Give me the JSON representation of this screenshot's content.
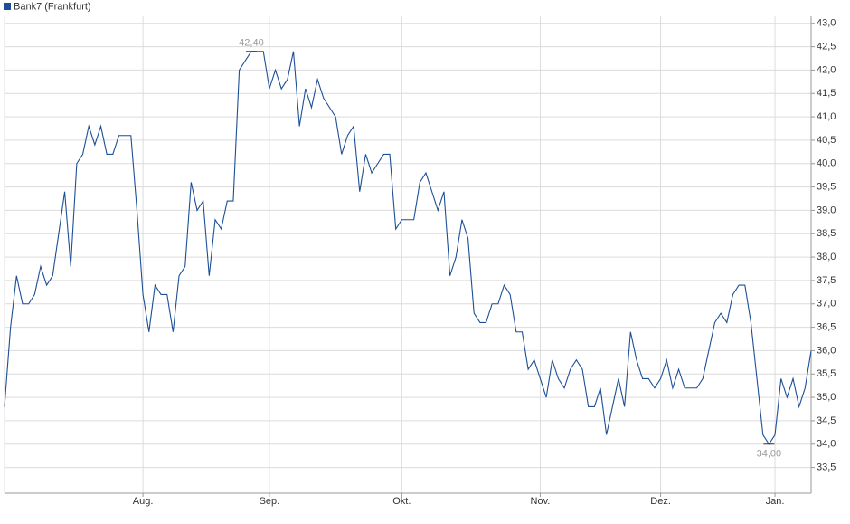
{
  "chart_data": {
    "type": "line",
    "categories": [
      null,
      null,
      null,
      null,
      null,
      null,
      null,
      null,
      null,
      null,
      null,
      null,
      null,
      null,
      null,
      null,
      null,
      null,
      null,
      null,
      null,
      null,
      null,
      "Aug.",
      null,
      null,
      null,
      null,
      null,
      null,
      null,
      null,
      null,
      null,
      null,
      null,
      null,
      null,
      null,
      null,
      null,
      null,
      null,
      null,
      "Sep.",
      null,
      null,
      null,
      null,
      null,
      null,
      null,
      null,
      null,
      null,
      null,
      null,
      null,
      null,
      null,
      null,
      null,
      null,
      null,
      null,
      null,
      "Okt.",
      null,
      null,
      null,
      null,
      null,
      null,
      null,
      null,
      null,
      null,
      null,
      null,
      null,
      null,
      null,
      null,
      null,
      null,
      null,
      null,
      null,
      null,
      "Nov.",
      null,
      null,
      null,
      null,
      null,
      null,
      null,
      null,
      null,
      null,
      null,
      null,
      null,
      null,
      null,
      null,
      null,
      null,
      null,
      "Dez.",
      null,
      null,
      null,
      null,
      null,
      null,
      null,
      null,
      null,
      null,
      null,
      null,
      null,
      null,
      null,
      null,
      null,
      null,
      "Jan.",
      null,
      null,
      null,
      null,
      null,
      null
    ],
    "series": [
      {
        "name": "Bank7 (Frankfurt)",
        "color": "#1c4f96",
        "values": [
          34.8,
          36.5,
          37.6,
          37.0,
          37.0,
          37.2,
          37.8,
          37.4,
          37.6,
          38.5,
          39.4,
          37.8,
          40.0,
          40.2,
          40.8,
          40.4,
          40.8,
          40.2,
          40.2,
          40.6,
          40.6,
          40.6,
          39.0,
          37.2,
          36.4,
          37.4,
          37.2,
          37.2,
          36.4,
          37.6,
          37.8,
          39.6,
          39.0,
          39.2,
          37.6,
          38.8,
          38.6,
          39.2,
          39.2,
          42.0,
          42.2,
          42.4,
          42.4,
          42.4,
          41.6,
          42.0,
          41.6,
          41.8,
          42.4,
          40.8,
          41.6,
          41.2,
          41.8,
          41.4,
          41.2,
          41.0,
          40.2,
          40.6,
          40.8,
          39.4,
          40.2,
          39.8,
          40.0,
          40.2,
          40.2,
          38.6,
          38.8,
          38.8,
          38.8,
          39.6,
          39.8,
          39.4,
          39.0,
          39.4,
          37.6,
          38.0,
          38.8,
          38.4,
          36.8,
          36.6,
          36.6,
          37.0,
          37.0,
          37.4,
          37.2,
          36.4,
          36.4,
          35.6,
          35.8,
          35.4,
          35.0,
          35.8,
          35.4,
          35.2,
          35.6,
          35.8,
          35.6,
          34.8,
          34.8,
          35.2,
          34.2,
          34.8,
          35.4,
          34.8,
          36.4,
          35.8,
          35.4,
          35.4,
          35.2,
          35.4,
          35.8,
          35.2,
          35.6,
          35.2,
          35.2,
          35.2,
          35.4,
          36.0,
          36.6,
          36.8,
          36.6,
          37.2,
          37.4,
          37.4,
          36.6,
          35.4,
          34.2,
          34.0,
          34.2,
          35.4,
          35.0,
          35.4,
          34.8,
          35.2,
          36.0
        ]
      }
    ],
    "annotations": [
      {
        "label": "42,40",
        "value": 42.4
      },
      {
        "label": "34,00",
        "value": 34.0
      }
    ],
    "ylim": [
      32.95,
      43.15
    ],
    "yticks": [
      {
        "value": 33.5,
        "label": "33,5"
      },
      {
        "value": 34,
        "label": "34,0"
      },
      {
        "value": 34.5,
        "label": "34,5"
      },
      {
        "value": 35,
        "label": "35,0"
      },
      {
        "value": 35.5,
        "label": "35,5"
      },
      {
        "value": 36,
        "label": "36,0"
      },
      {
        "value": 36.5,
        "label": "36,5"
      },
      {
        "value": 37,
        "label": "37,0"
      },
      {
        "value": 37.5,
        "label": "37,5"
      },
      {
        "value": 38,
        "label": "38,0"
      },
      {
        "value": 38.5,
        "label": "38,5"
      },
      {
        "value": 39,
        "label": "39,0"
      },
      {
        "value": 39.5,
        "label": "39,5"
      },
      {
        "value": 40,
        "label": "40,0"
      },
      {
        "value": 40.5,
        "label": "40,5"
      },
      {
        "value": 41,
        "label": "41,0"
      },
      {
        "value": 41.5,
        "label": "41,5"
      },
      {
        "value": 42,
        "label": "42,0"
      },
      {
        "value": 42.5,
        "label": "42,5"
      },
      {
        "value": 43,
        "label": "43,0"
      }
    ],
    "grid": true
  }
}
